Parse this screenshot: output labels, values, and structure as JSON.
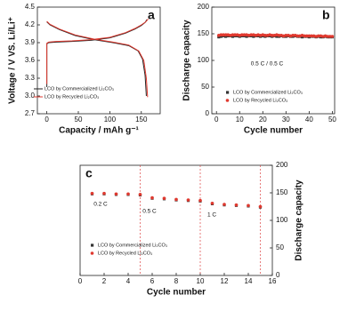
{
  "chart_data": [
    {
      "type": "line",
      "panel_label": "a",
      "xlabel": "Capacity / mAh g⁻¹",
      "ylabel": "Voltage / V VS. Li/Li⁺",
      "xlim": [
        -15,
        180
      ],
      "xticks": [
        0,
        50,
        100,
        150
      ],
      "ylim": [
        2.7,
        4.5
      ],
      "yticks": [
        2.7,
        {
          "value": 3,
          "label": "3.0"
        },
        3.3,
        3.6,
        3.9,
        4.2,
        4.5
      ],
      "legend": "lower left",
      "series": [
        {
          "name": "LCO by Commercialized Li₂CO₃",
          "color": "#222222",
          "x": [
            0,
            0,
            3,
            15,
            40,
            70,
            100,
            125,
            140,
            150,
            156,
            159,
            null,
            0,
            5,
            20,
            45,
            75,
            105,
            130,
            145,
            152,
            156,
            158
          ],
          "values": [
            3.15,
            3.88,
            3.9,
            3.91,
            3.92,
            3.94,
            3.98,
            4.06,
            4.13,
            4.19,
            4.24,
            4.29,
            null,
            4.25,
            4.2,
            4.12,
            4.02,
            3.95,
            3.9,
            3.85,
            3.76,
            3.62,
            3.35,
            3.0
          ]
        },
        {
          "name": "LCO by Recycled Li₂CO₃",
          "color": "#e0392f",
          "x": [
            0,
            0,
            3,
            15,
            40,
            70,
            100,
            125,
            140,
            150,
            157,
            161,
            null,
            0,
            5,
            20,
            45,
            75,
            105,
            130,
            146,
            154,
            158,
            160
          ],
          "values": [
            3.2,
            3.89,
            3.91,
            3.92,
            3.93,
            3.95,
            3.99,
            4.07,
            4.14,
            4.2,
            4.25,
            4.3,
            null,
            4.26,
            4.21,
            4.13,
            4.03,
            3.96,
            3.91,
            3.86,
            3.76,
            3.6,
            3.3,
            2.98
          ]
        }
      ]
    },
    {
      "type": "scatter",
      "panel_label": "b",
      "xlabel": "Cycle number",
      "ylabel": "Discharge capacity",
      "xlim": [
        -2,
        51
      ],
      "xticks": [
        0,
        10,
        20,
        30,
        40,
        50
      ],
      "ylim": [
        0,
        200
      ],
      "yticks": [
        0,
        50,
        100,
        150,
        200
      ],
      "annotations": [
        "0.5 C / 0.5 C"
      ],
      "legend": "lower center",
      "x": [
        1,
        2,
        3,
        4,
        5,
        6,
        7,
        8,
        9,
        10,
        11,
        12,
        13,
        14,
        15,
        16,
        17,
        18,
        19,
        20,
        21,
        22,
        23,
        24,
        25,
        26,
        27,
        28,
        29,
        30,
        31,
        32,
        33,
        34,
        35,
        36,
        37,
        38,
        39,
        40,
        41,
        42,
        43,
        44,
        45,
        46,
        47,
        48,
        49,
        50
      ],
      "series": [
        {
          "name": "LCO by Commercialized Li₂CO₃",
          "color": "#333333",
          "marker": "square",
          "values": [
            144,
            145,
            146,
            145,
            146,
            146,
            145,
            146,
            146,
            145,
            146,
            146,
            145,
            146,
            146,
            145,
            146,
            146,
            145,
            146,
            145,
            146,
            146,
            145,
            146,
            145,
            145,
            146,
            145,
            145,
            146,
            145,
            145,
            146,
            145,
            145,
            144,
            145,
            145,
            144,
            145,
            145,
            144,
            145,
            144,
            144,
            145,
            144,
            144,
            144
          ]
        },
        {
          "name": "LCO by Recycled Li₂CO₃",
          "color": "#e0392f",
          "marker": "circle",
          "values": [
            147,
            148,
            148,
            148,
            148,
            147,
            148,
            148,
            148,
            147,
            148,
            148,
            148,
            147,
            148,
            148,
            147,
            148,
            147,
            148,
            147,
            147,
            148,
            147,
            147,
            148,
            147,
            147,
            146,
            147,
            147,
            146,
            147,
            147,
            146,
            146,
            147,
            146,
            146,
            146,
            146,
            146,
            145,
            146,
            146,
            145,
            146,
            145,
            145,
            145
          ]
        }
      ]
    },
    {
      "type": "scatter",
      "panel_label": "c",
      "xlabel": "Cycle number",
      "ylabel": "Discharge capacity",
      "y_axis_side": "right",
      "xlim": [
        0,
        16
      ],
      "xticks": [
        0,
        2,
        4,
        6,
        8,
        10,
        12,
        14,
        16
      ],
      "ylim": [
        0,
        200
      ],
      "yticks": [
        0,
        50,
        100,
        150,
        200
      ],
      "vlines": [
        5,
        10,
        15
      ],
      "annotations": [
        "0.2 C",
        "0.5 C",
        "1 C"
      ],
      "legend": "lower left",
      "x": [
        1,
        2,
        3,
        4,
        5,
        6,
        7,
        8,
        9,
        10,
        11,
        12,
        13,
        14,
        15
      ],
      "series": [
        {
          "name": "LCO by Commercialized Li₂CO₃",
          "color": "#333333",
          "marker": "square",
          "values": [
            148,
            148,
            147,
            147,
            146,
            140,
            139,
            137,
            136,
            135,
            130,
            128,
            127,
            126,
            124
          ]
        },
        {
          "name": "LCO by Recycled Li₂CO₃",
          "color": "#e0392f",
          "marker": "circle",
          "values": [
            149,
            149,
            148,
            148,
            147,
            141,
            140,
            138,
            137,
            136,
            131,
            129,
            128,
            127,
            125
          ]
        }
      ]
    }
  ]
}
